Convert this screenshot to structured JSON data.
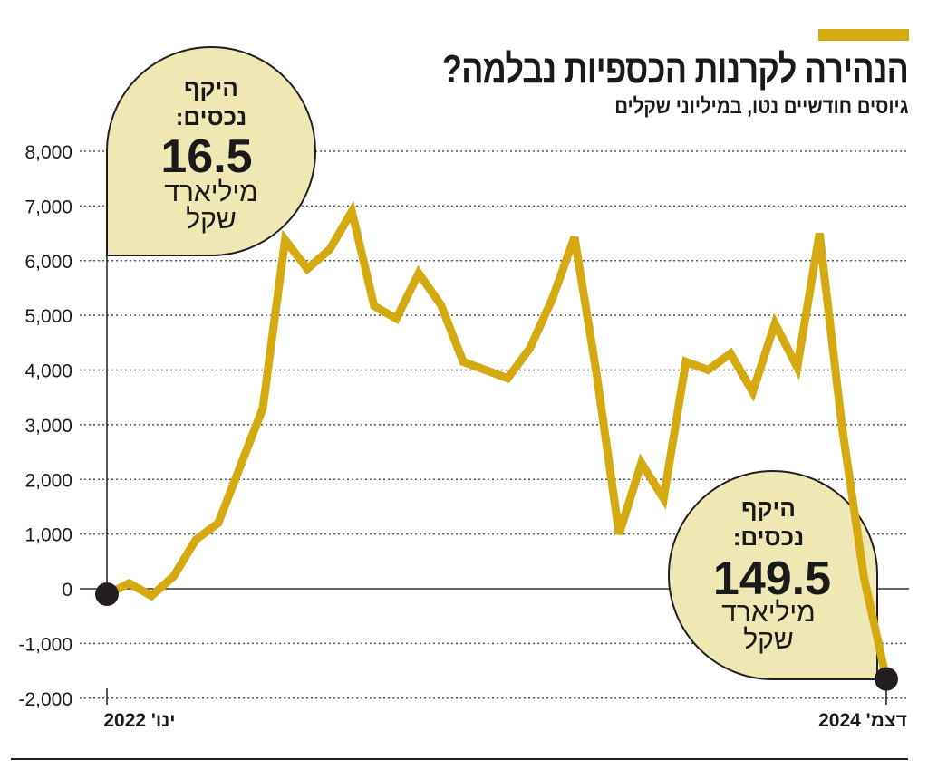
{
  "header": {
    "title": "הנהירה לקרנות הכספיות נבלמה?",
    "subtitle": "גיוסים חודשיים נטו, במיליוני שקלים"
  },
  "colors": {
    "line": "#d4aa10",
    "bubble": "#efe8b4",
    "dot": "#231f20",
    "accent": "#d4aa10"
  },
  "annotations": [
    {
      "line1": "היקף",
      "line2": "נכסים:",
      "value": "16.5",
      "unit1": "מיליארד",
      "unit2": "שקל"
    },
    {
      "line1": "היקף",
      "line2": "נכסים:",
      "value": "149.5",
      "unit1": "מיליארד",
      "unit2": "שקל"
    }
  ],
  "chart_data": {
    "type": "line",
    "title": "הנהירה לקרנות הכספיות נבלמה?",
    "subtitle": "גיוסים חודשיים נטו, במיליוני שקלים",
    "x_start": "2022-01",
    "x_end": "2024-12",
    "xtick_labels": [
      "ינו' 2022",
      "דצמ' 2024"
    ],
    "ylim": [
      -2000,
      8000
    ],
    "yticks": [
      -2000,
      -1000,
      0,
      1000,
      2000,
      3000,
      4000,
      5000,
      6000,
      7000,
      8000
    ],
    "ytick_labels": [
      "-2,000",
      "-1,000",
      "0",
      "1,000",
      "2,000",
      "3,000",
      "4,000",
      "5,000",
      "6,000",
      "7,000",
      "8,000"
    ],
    "grid": "horizontal dotted",
    "values": [
      -100,
      100,
      -130,
      230,
      900,
      1200,
      2250,
      3300,
      6380,
      5850,
      6200,
      6900,
      5170,
      4940,
      5770,
      5190,
      4150,
      4000,
      3850,
      4400,
      5300,
      6430,
      3900,
      1000,
      2300,
      1650,
      4150,
      4000,
      4300,
      3600,
      4850,
      4050,
      6500,
      3000,
      200,
      -1650
    ]
  }
}
